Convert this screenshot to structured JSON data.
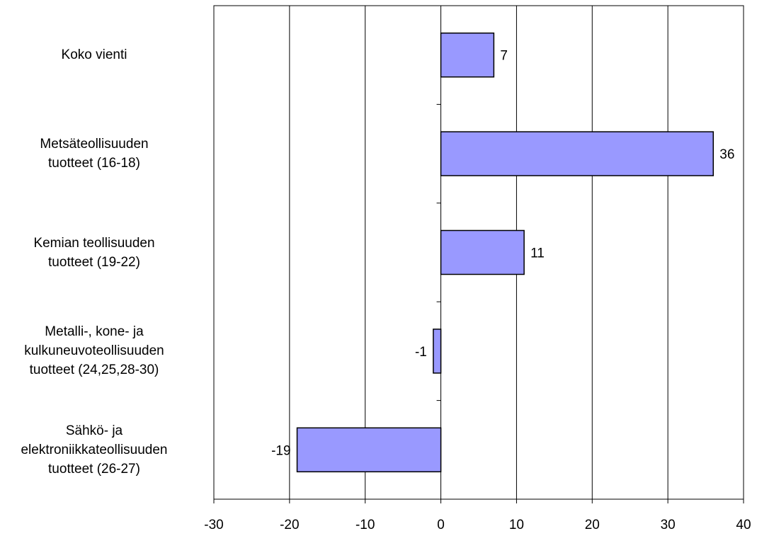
{
  "chart_data": {
    "type": "bar",
    "orientation": "horizontal",
    "categories": [
      "Koko vienti",
      "Metsäteollisuuden\ntuotteet (16-18)",
      "Kemian teollisuuden\ntuotteet (19-22)",
      "Metalli-, kone- ja\nkulkuneuvoteollisuuden\ntuotteet (24,25,28-30)",
      "Sähkö- ja\nelektroniikkateollisuuden\ntuotteet (26-27)"
    ],
    "values": [
      7,
      36,
      11,
      -1,
      -19
    ],
    "data_labels": [
      "7",
      "36",
      "11",
      "-1",
      "-19"
    ],
    "xlim": [
      -30,
      40
    ],
    "xticks": [
      "-30",
      "-20",
      "-10",
      "0",
      "10",
      "20",
      "30",
      "40"
    ],
    "grid": true,
    "legend": "none",
    "bar_color": "#9999ff"
  }
}
